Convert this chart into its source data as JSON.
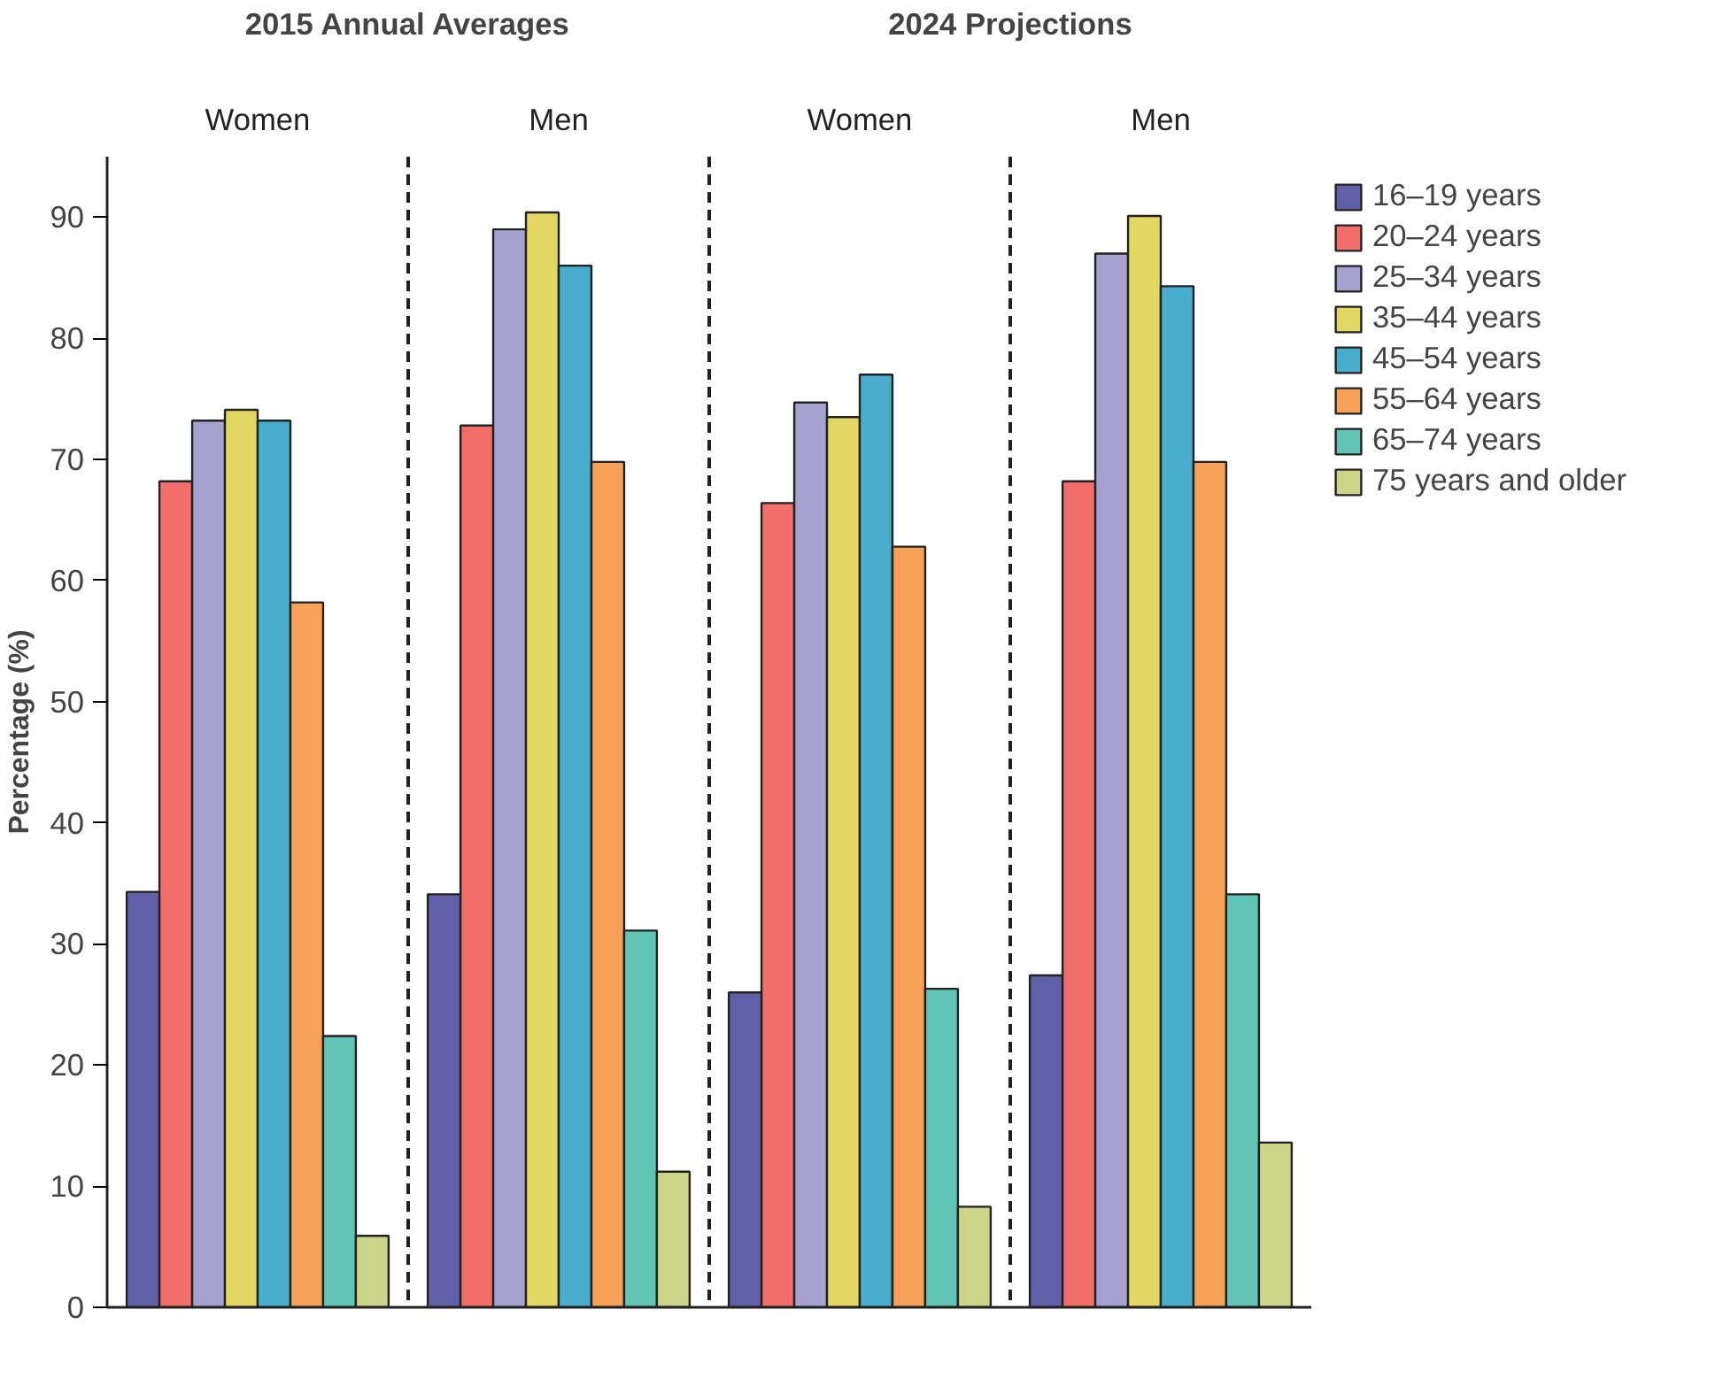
{
  "chart_data": {
    "type": "bar",
    "annotations": [
      "2015 Annual Averages",
      "2024 Projections"
    ],
    "categories": [
      "Women",
      "Men",
      "Women",
      "Men"
    ],
    "ylabel": "Percentage (%)",
    "ylim": [
      0,
      95
    ],
    "yticks": [
      0,
      10,
      20,
      30,
      40,
      50,
      60,
      70,
      80,
      90
    ],
    "grid": false,
    "legend": "right",
    "series": [
      {
        "name": "16–19 years",
        "color": "#6260a8",
        "values": [
          34.3,
          34.1,
          26.0,
          27.4
        ]
      },
      {
        "name": "20–24 years",
        "color": "#f26e6a",
        "values": [
          68.2,
          72.8,
          66.4,
          68.2
        ]
      },
      {
        "name": "25–34 years",
        "color": "#a5a2d0",
        "values": [
          73.2,
          89.0,
          74.7,
          87.0
        ]
      },
      {
        "name": "35–44 years",
        "color": "#e3d764",
        "values": [
          74.1,
          90.4,
          73.5,
          90.1
        ]
      },
      {
        "name": "45–54 years",
        "color": "#48adcc",
        "values": [
          73.2,
          86.0,
          77.0,
          84.3
        ]
      },
      {
        "name": "55–64 years",
        "color": "#f7a158",
        "values": [
          58.2,
          69.8,
          62.8,
          69.8
        ]
      },
      {
        "name": "65–74 years",
        "color": "#62c4b5",
        "values": [
          22.4,
          31.1,
          26.3,
          34.1
        ]
      },
      {
        "name": "75 years and older",
        "color": "#cbd488",
        "values": [
          5.9,
          11.2,
          8.3,
          13.6
        ]
      }
    ]
  }
}
